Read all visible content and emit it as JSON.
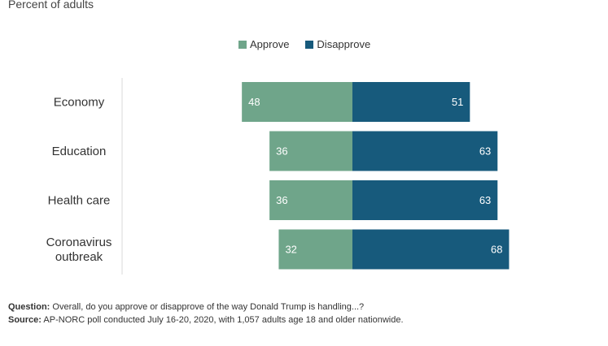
{
  "subtitle": "Percent of adults",
  "legend": {
    "approve_label": "Approve",
    "disapprove_label": "Disapprove"
  },
  "colors": {
    "approve": "#6fa58a",
    "disapprove": "#175a7c",
    "axis_line": "#d9d9d9",
    "label_text": "#ffffff",
    "category_text": "#333333"
  },
  "chart_data": {
    "type": "bar",
    "orientation": "horizontal-diverging",
    "categories": [
      "Economy",
      "Education",
      "Health care",
      "Coronavirus outbreak"
    ],
    "series": [
      {
        "name": "Approve",
        "values": [
          48,
          36,
          36,
          32
        ]
      },
      {
        "name": "Disapprove",
        "values": [
          51,
          63,
          63,
          68
        ]
      }
    ],
    "legend_position": "top"
  },
  "footnotes": {
    "question_label": "Question:",
    "question_text": " Overall, do you approve or disapprove of the way Donald Trump is handling...?",
    "source_label": "Source:",
    "source_text": " AP-NORC poll conducted July 16-20, 2020, with 1,057 adults age 18 and older nationwide."
  }
}
